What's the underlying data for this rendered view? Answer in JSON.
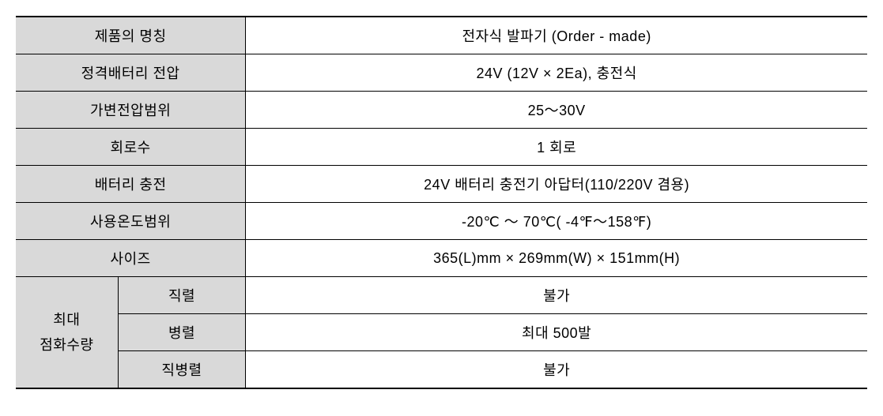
{
  "table": {
    "colors": {
      "label_bg": "#d9d9d9",
      "value_bg": "#ffffff",
      "border": "#000000"
    },
    "rows": [
      {
        "label": "제품의 명칭",
        "value": "전자식 발파기 (Order - made)"
      },
      {
        "label": "정격배터리 전압",
        "value": "24V (12V × 2Ea), 충전식"
      },
      {
        "label": "가변전압범위",
        "value": "25～30V"
      },
      {
        "label": "회로수",
        "value": "1 회로"
      },
      {
        "label": "배터리 충전",
        "value": "24V 배터리 충전기 아답터(110/220V 겸용)"
      },
      {
        "label": "사용온도범위",
        "value": "-20℃ ～ 70℃(  -4℉～158℉)"
      },
      {
        "label": "사이즈",
        "value": "365(L)mm × 269mm(W) × 151mm(H)"
      }
    ],
    "grouped": {
      "group_label": "최대\n점화수량",
      "subrows": [
        {
          "sublabel": "직렬",
          "value": "불가"
        },
        {
          "sublabel": "병렬",
          "value": "최대 500발"
        },
        {
          "sublabel": "직병렬",
          "value": "불가"
        }
      ]
    }
  }
}
